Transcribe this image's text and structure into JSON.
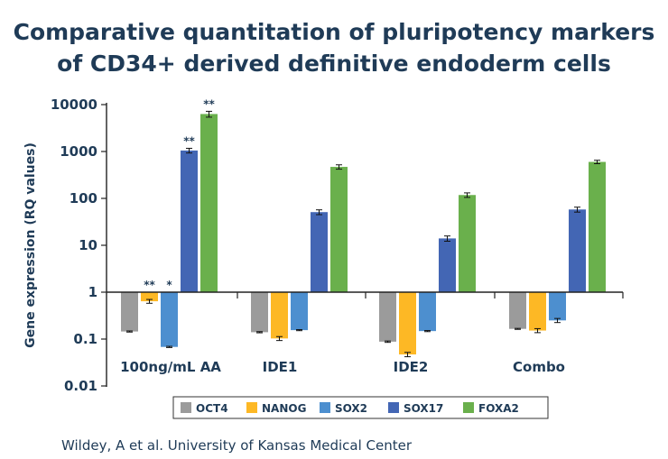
{
  "chart_data": {
    "type": "bar",
    "title_lines": [
      "Comparative quantitation of pluripotency markers",
      "of CD34+ derived definitive endoderm cells"
    ],
    "ylabel": "Gene expression (RQ values)",
    "yscale": "log",
    "ylim": [
      0.01,
      10000
    ],
    "yticks": [
      "0.01",
      "0.1",
      "1",
      "10",
      "100",
      "1000",
      "10000"
    ],
    "baseline": 1,
    "categories": [
      "100ng/mL AA",
      "IDE1",
      "IDE2",
      "Combo"
    ],
    "series": [
      {
        "name": "OCT4",
        "color": "#9b9b9b",
        "values": [
          0.145,
          0.14,
          0.088,
          0.165
        ],
        "err": [
          0.004,
          0.004,
          0.003,
          0.004
        ]
      },
      {
        "name": "NANOG",
        "color": "#fdb825",
        "values": [
          0.64,
          0.103,
          0.047,
          0.152
        ],
        "err": [
          0.06,
          0.01,
          0.005,
          0.015
        ]
      },
      {
        "name": "SOX2",
        "color": "#4d8fcf",
        "values": [
          0.068,
          0.155,
          0.148,
          0.25
        ],
        "err": [
          0.002,
          0.004,
          0.004,
          0.025
        ]
      },
      {
        "name": "SOX17",
        "color": "#4366b4",
        "values": [
          1050,
          51,
          14,
          58
        ],
        "err": [
          120,
          6,
          1.8,
          7
        ]
      },
      {
        "name": "FOXA2",
        "color": "#6ab04c",
        "values": [
          6300,
          470,
          118,
          600
        ],
        "err": [
          900,
          50,
          13,
          50
        ]
      }
    ],
    "annotations": [
      {
        "category": 0,
        "series": 1,
        "text": "**"
      },
      {
        "category": 0,
        "series": 2,
        "text": "*"
      },
      {
        "category": 0,
        "series": 3,
        "text": "**"
      },
      {
        "category": 0,
        "series": 4,
        "text": "**"
      }
    ],
    "legend_position": "bottom"
  },
  "credit": "Wildey, A et al. University of Kansas Medical Center"
}
